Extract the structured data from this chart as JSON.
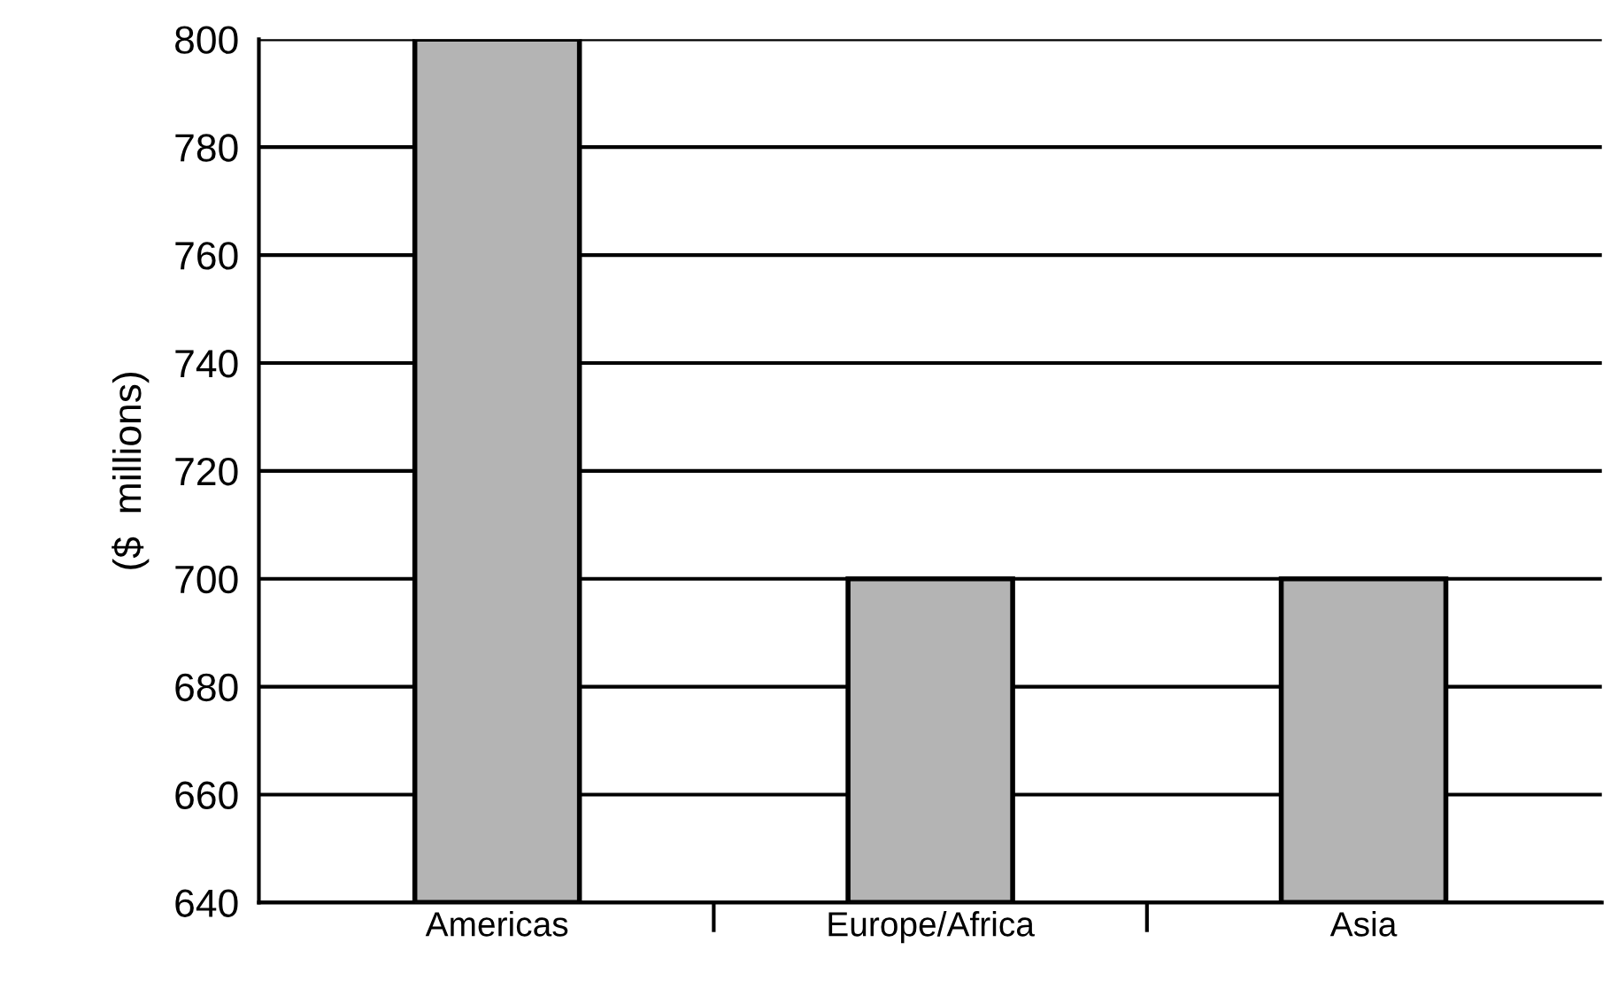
{
  "chart_data": {
    "type": "bar",
    "ylabel": "($  millions)",
    "categories": [
      "Americas",
      "Europe/Africa",
      "Asia"
    ],
    "values": [
      800,
      700,
      700
    ],
    "color": "#b4b4b4",
    "ylim": [
      640,
      800
    ],
    "yticks": [
      640,
      660,
      680,
      700,
      720,
      740,
      760,
      780,
      800
    ],
    "grid": "y"
  }
}
